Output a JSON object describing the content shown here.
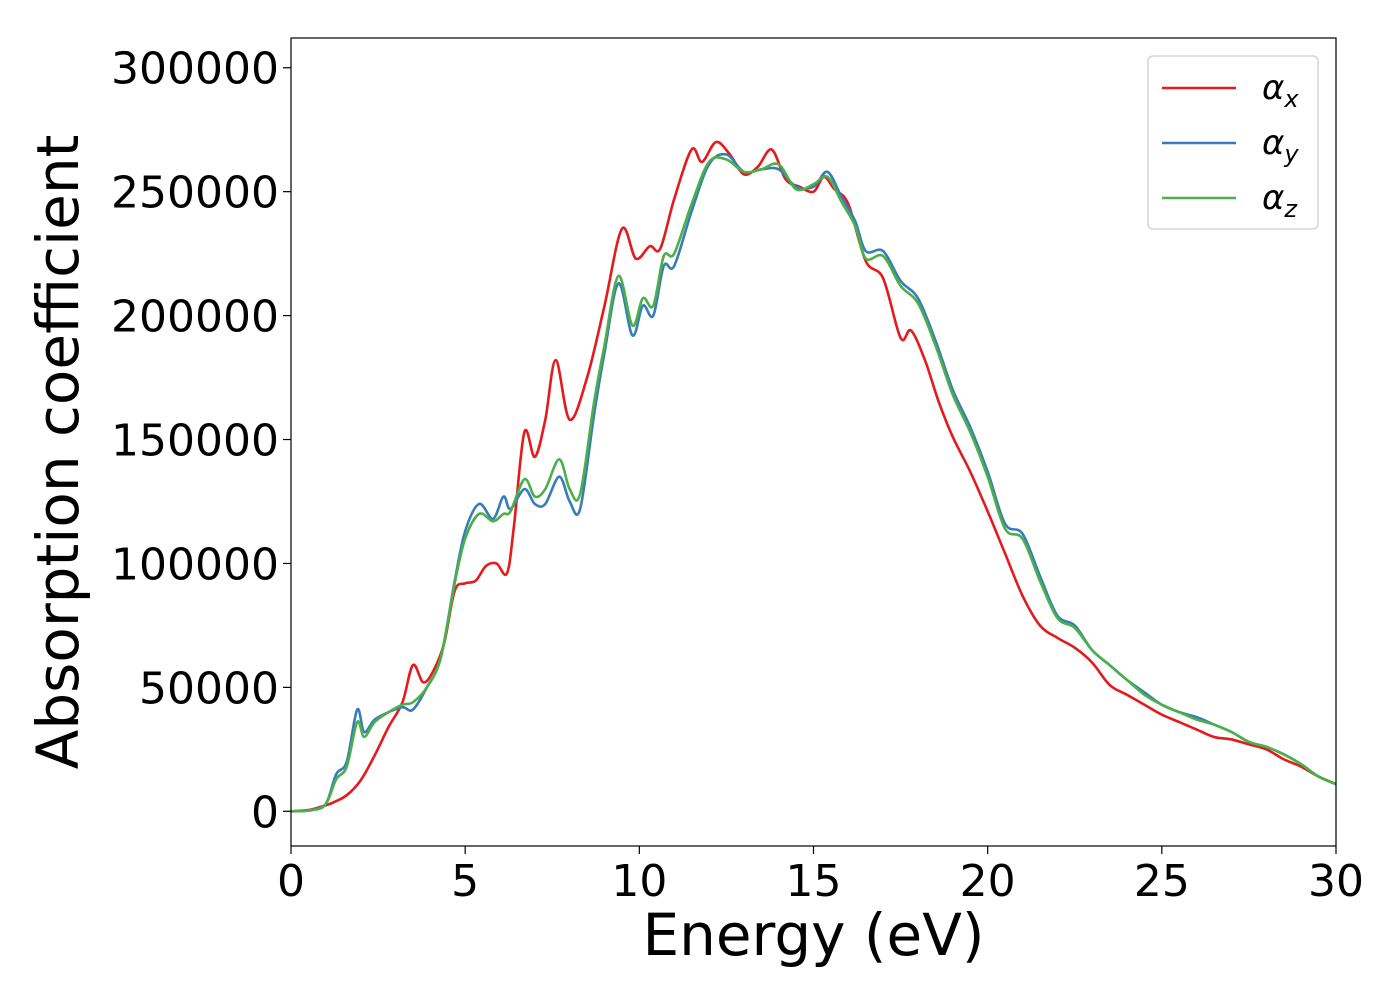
{
  "chart_data": {
    "type": "line",
    "title": "",
    "xlabel": "Energy (eV)",
    "ylabel": "Absorption coefficient",
    "xlim": [
      0,
      30
    ],
    "ylim": [
      -14000,
      312000
    ],
    "xticks": [
      0,
      5,
      10,
      15,
      20,
      25,
      30
    ],
    "xtick_labels": [
      "0",
      "5",
      "10",
      "15",
      "20",
      "25",
      "30"
    ],
    "yticks": [
      0,
      50000,
      100000,
      150000,
      200000,
      250000,
      300000
    ],
    "ytick_labels": [
      "0",
      "50000",
      "100000",
      "150000",
      "200000",
      "250000",
      "300000"
    ],
    "grid": false,
    "legend_position": "top-right",
    "series": [
      {
        "name": "α",
        "subscript": "x",
        "color": "#e41a1c",
        "x": [
          0,
          0.5,
          0.9,
          1.2,
          1.6,
          2.0,
          2.4,
          2.8,
          3.2,
          3.5,
          3.8,
          4.1,
          4.4,
          4.7,
          5.0,
          5.3,
          5.6,
          5.9,
          6.2,
          6.4,
          6.7,
          7.0,
          7.3,
          7.6,
          8.0,
          8.5,
          9.0,
          9.5,
          9.9,
          10.3,
          10.6,
          11.0,
          11.5,
          11.8,
          12.2,
          12.6,
          13.0,
          13.4,
          13.8,
          14.2,
          14.6,
          15.0,
          15.3,
          15.6,
          16.0,
          16.5,
          17.0,
          17.5,
          17.8,
          18.2,
          18.6,
          19.0,
          19.5,
          20.0,
          20.5,
          21.0,
          21.5,
          22.0,
          22.5,
          23.0,
          23.5,
          24.0,
          24.5,
          25.0,
          25.5,
          26.0,
          26.5,
          27.0,
          27.5,
          28.0,
          28.5,
          29.0,
          29.5,
          30.0
        ],
        "y": [
          0,
          500,
          2000,
          3500,
          6500,
          12500,
          22500,
          34000,
          44000,
          59000,
          52000,
          57000,
          68000,
          89000,
          92000,
          93000,
          99000,
          100000,
          96000,
          115000,
          153000,
          143000,
          158000,
          182000,
          158000,
          175000,
          204000,
          235000,
          223000,
          228000,
          227000,
          247000,
          267000,
          262000,
          270000,
          265000,
          257000,
          260000,
          267000,
          255000,
          252000,
          250000,
          256000,
          251000,
          245000,
          222000,
          215000,
          191000,
          194000,
          182000,
          165000,
          151000,
          137000,
          121000,
          104000,
          87000,
          75000,
          70000,
          66000,
          60000,
          51000,
          47000,
          43000,
          39000,
          36000,
          33000,
          30000,
          29000,
          27000,
          25000,
          21000,
          18000,
          14000,
          11000
        ]
      },
      {
        "name": "α",
        "subscript": "y",
        "color": "#377eb8",
        "x": [
          0,
          0.6,
          1.0,
          1.3,
          1.6,
          1.9,
          2.1,
          2.4,
          2.8,
          3.2,
          3.5,
          3.9,
          4.3,
          4.7,
          5.0,
          5.4,
          5.8,
          6.1,
          6.3,
          6.7,
          7.0,
          7.3,
          7.7,
          8.0,
          8.3,
          8.7,
          9.0,
          9.4,
          9.8,
          10.1,
          10.4,
          10.7,
          11.0,
          11.5,
          12.0,
          12.5,
          13.0,
          13.5,
          14.0,
          14.5,
          15.0,
          15.4,
          15.8,
          16.2,
          16.5,
          17.0,
          17.5,
          18.0,
          18.5,
          19.0,
          19.5,
          20.0,
          20.5,
          21.0,
          21.5,
          22.0,
          22.5,
          23.0,
          23.5,
          24.0,
          24.5,
          25.0,
          25.5,
          26.0,
          26.5,
          27.0,
          27.5,
          28.0,
          28.5,
          29.0,
          29.5,
          30.0
        ],
        "y": [
          0,
          500,
          3000,
          15000,
          20000,
          41000,
          32000,
          37000,
          40000,
          42000,
          41000,
          50000,
          62000,
          93000,
          113000,
          124000,
          118000,
          127000,
          122000,
          130000,
          124000,
          124000,
          135000,
          125000,
          122000,
          160000,
          185000,
          213000,
          192000,
          204000,
          200000,
          220000,
          220000,
          242000,
          261000,
          265000,
          258000,
          259000,
          259000,
          252000,
          252000,
          258000,
          248000,
          238000,
          226000,
          226000,
          214000,
          207000,
          190000,
          170000,
          155000,
          137000,
          116000,
          112000,
          95000,
          79000,
          75000,
          65000,
          59000,
          53000,
          48000,
          43000,
          40000,
          38000,
          35000,
          32000,
          28000,
          26000,
          23000,
          19000,
          14000,
          11000
        ]
      },
      {
        "name": "α",
        "subscript": "z",
        "color": "#4daf4a",
        "x": [
          0,
          0.6,
          1.0,
          1.3,
          1.6,
          1.9,
          2.1,
          2.4,
          2.8,
          3.2,
          3.5,
          3.9,
          4.3,
          4.7,
          5.0,
          5.4,
          5.8,
          6.1,
          6.3,
          6.7,
          7.0,
          7.3,
          7.7,
          8.0,
          8.3,
          8.7,
          9.0,
          9.4,
          9.8,
          10.1,
          10.4,
          10.7,
          11.0,
          11.5,
          12.0,
          12.5,
          13.0,
          13.5,
          14.0,
          14.5,
          15.0,
          15.4,
          15.8,
          16.2,
          16.5,
          17.0,
          17.5,
          18.0,
          18.5,
          19.0,
          19.5,
          20.0,
          20.5,
          21.0,
          21.5,
          22.0,
          22.5,
          23.0,
          23.5,
          24.0,
          24.5,
          25.0,
          25.5,
          26.0,
          26.5,
          27.0,
          27.5,
          28.0,
          28.5,
          29.0,
          29.5,
          30.0
        ],
        "y": [
          0,
          500,
          3000,
          13000,
          18000,
          36000,
          30000,
          36000,
          40000,
          43000,
          44000,
          50000,
          62000,
          92000,
          110000,
          120000,
          117000,
          120000,
          121000,
          134000,
          127000,
          130000,
          142000,
          130000,
          128000,
          165000,
          188000,
          216000,
          196000,
          207000,
          204000,
          224000,
          225000,
          245000,
          262000,
          263000,
          258000,
          259000,
          261000,
          251000,
          253000,
          256000,
          246000,
          236000,
          223000,
          224000,
          212000,
          205000,
          188000,
          168000,
          153000,
          135000,
          114000,
          110000,
          93000,
          78000,
          74000,
          65000,
          59000,
          53000,
          47000,
          43000,
          40000,
          37000,
          35000,
          32000,
          28000,
          26000,
          23000,
          19000,
          14000,
          11000
        ]
      }
    ]
  }
}
